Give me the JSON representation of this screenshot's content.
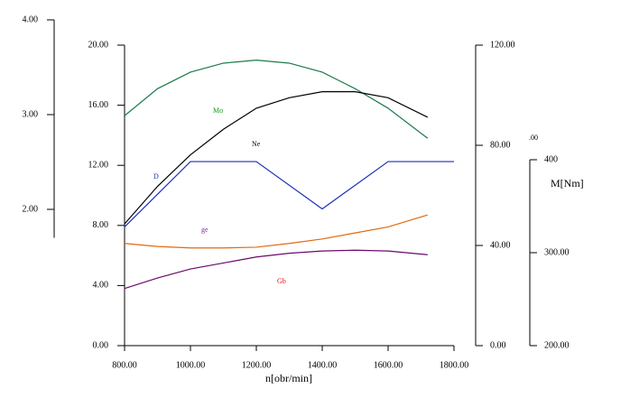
{
  "chart_data": {
    "type": "line",
    "xlabel": "n[obr/min]",
    "y4label": "M[Nm]",
    "annotation": ".00",
    "xlim": [
      800,
      1800
    ],
    "xticks": [
      {
        "value": 800,
        "label": "800.00"
      },
      {
        "value": 1000,
        "label": "1000.00"
      },
      {
        "value": 1200,
        "label": "1200.00"
      },
      {
        "value": 1400,
        "label": "1400.00"
      },
      {
        "value": 1600,
        "label": "1600.00"
      },
      {
        "value": 1800,
        "label": "1800.00"
      }
    ],
    "ylim": [
      0,
      20
    ],
    "yticks": [
      {
        "value": 0,
        "label": "0.00"
      },
      {
        "value": 4,
        "label": "4.00"
      },
      {
        "value": 8,
        "label": "8.00"
      },
      {
        "value": 12,
        "label": "12.00"
      },
      {
        "value": 16,
        "label": "16.00"
      },
      {
        "value": 20,
        "label": "20.00"
      }
    ],
    "y2lim": [
      1.7,
      4
    ],
    "y2ticks": [
      {
        "value": 2,
        "label": "2.00"
      },
      {
        "value": 3,
        "label": "3.00"
      },
      {
        "value": 4,
        "label": "4.00"
      }
    ],
    "y3lim": [
      0,
      120
    ],
    "y3ticks": [
      {
        "value": 0,
        "label": "0.00"
      },
      {
        "value": 40,
        "label": "40.00"
      },
      {
        "value": 80,
        "label": "80.00"
      },
      {
        "value": 120,
        "label": "120.00"
      }
    ],
    "y4lim": [
      200,
      400
    ],
    "y4ticks": [
      {
        "value": 200,
        "label": "200.00"
      },
      {
        "value": 300,
        "label": "300.00"
      },
      400
    ],
    "series": [
      {
        "name": "Mo",
        "color": "#1a7a4a",
        "label_color": "#139a13",
        "x": [
          800,
          900,
          1000,
          1100,
          1200,
          1300,
          1400,
          1500,
          1600,
          1720
        ],
        "values": [
          15.3,
          17.1,
          18.2,
          18.8,
          19.0,
          18.8,
          18.2,
          17.1,
          15.8,
          13.8
        ]
      },
      {
        "name": "Ne",
        "color": "#000000",
        "label_color": "#000000",
        "x": [
          800,
          900,
          1000,
          1100,
          1200,
          1300,
          1400,
          1500,
          1600,
          1720
        ],
        "values": [
          8.1,
          10.6,
          12.7,
          14.4,
          15.8,
          16.5,
          16.9,
          16.9,
          16.5,
          15.2
        ]
      },
      {
        "name": "D",
        "color": "#1c2fb8",
        "label_color": "#1c2fb8",
        "x": [
          800,
          1000,
          1200,
          1400,
          1600,
          1800
        ],
        "values": [
          7.9,
          12.25,
          12.25,
          9.1,
          12.25,
          12.25
        ]
      },
      {
        "name": "ge",
        "color": "#e06a10",
        "label_color": "#8a2aa0",
        "x": [
          800,
          900,
          1000,
          1100,
          1200,
          1300,
          1400,
          1500,
          1600,
          1720
        ],
        "values": [
          6.8,
          6.6,
          6.5,
          6.5,
          6.55,
          6.8,
          7.1,
          7.5,
          7.9,
          8.7
        ]
      },
      {
        "name": "Gb",
        "color": "#6a0a6a",
        "label_color": "#e01010",
        "x": [
          800,
          900,
          1000,
          1100,
          1200,
          1300,
          1400,
          1500,
          1600,
          1720
        ],
        "values": [
          3.8,
          4.5,
          5.1,
          5.5,
          5.9,
          6.15,
          6.3,
          6.35,
          6.3,
          6.05
        ]
      }
    ]
  }
}
